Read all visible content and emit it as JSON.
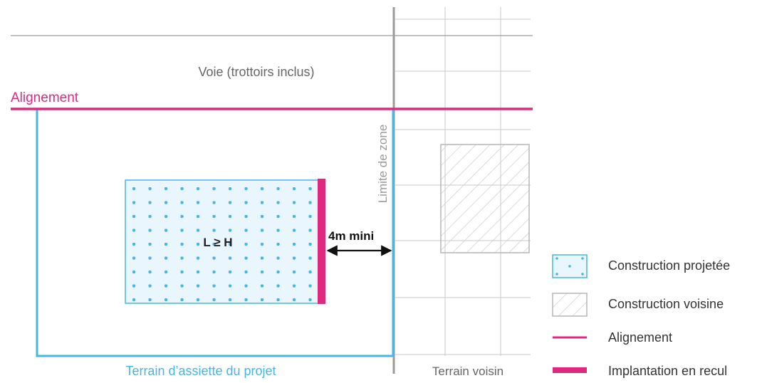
{
  "labels": {
    "voie": "Voie (trottoirs inclus)",
    "alignement": "Alignement",
    "limite_zone": "Limite de zone",
    "ratio": "L ≥ H",
    "distance": "4m mini",
    "terrain_assiette": "Terrain d’assiette du projet",
    "terrain_voisin": "Terrain voisin"
  },
  "legend": [
    {
      "key": "construction_projetee",
      "label": "Construction projetée",
      "symbol": "dotted-box"
    },
    {
      "key": "construction_voisine",
      "label": "Construction voisine",
      "symbol": "hatched-box"
    },
    {
      "key": "alignement",
      "label": "Alignement",
      "symbol": "thin-line"
    },
    {
      "key": "implantation_recul",
      "label": "Implantation en recul",
      "symbol": "thick-bar"
    }
  ],
  "colors": {
    "magenta": "#e0287f",
    "blue": "#45b6e6",
    "light_blue": "#eaf6fd",
    "gray_line": "#9a9a9a",
    "light_gray": "#c8c8c8",
    "text_dark": "#333333",
    "text_gray": "#666666"
  }
}
